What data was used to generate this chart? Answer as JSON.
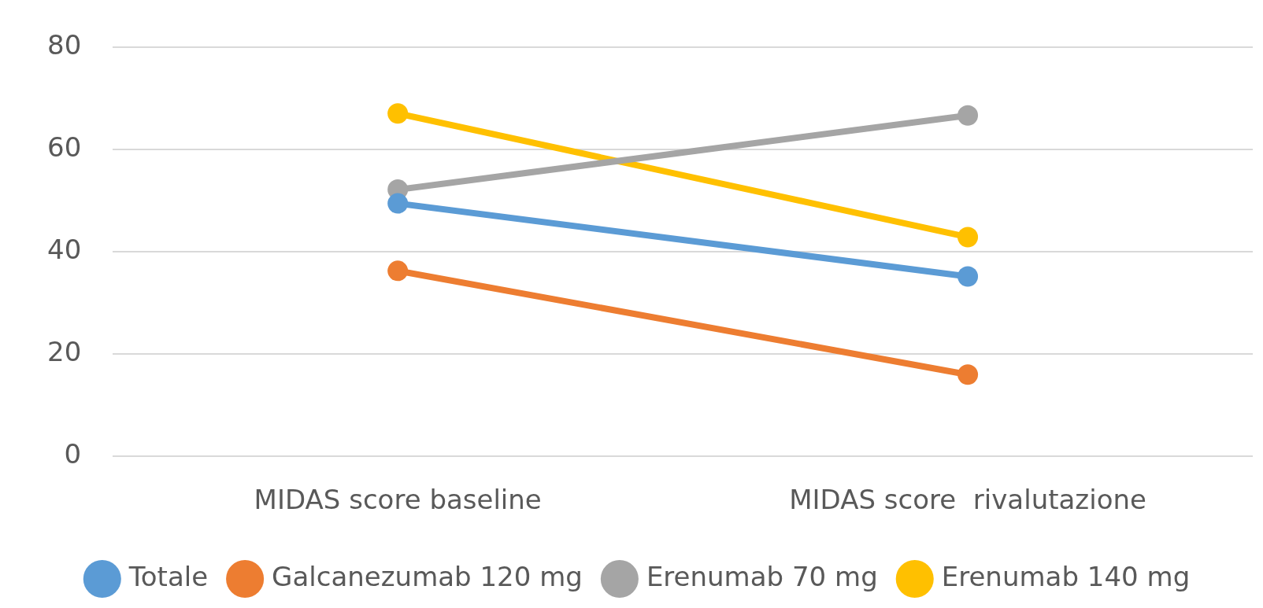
{
  "chart_data": {
    "type": "line",
    "categories": [
      "MIDAS score baseline",
      "MIDAS score  rivalutazione"
    ],
    "series": [
      {
        "name": "Totale",
        "color": "#5b9bd5",
        "values": [
          49.5,
          35.2
        ]
      },
      {
        "name": "Galcanezumab 120 mg",
        "color": "#ed7d31",
        "values": [
          36.3,
          16
        ]
      },
      {
        "name": "Erenumab 70 mg",
        "color": "#a5a5a5",
        "values": [
          52.2,
          66.7
        ]
      },
      {
        "name": "Erenumab 140 mg",
        "color": "#ffc000",
        "values": [
          67.1,
          42.9
        ]
      }
    ],
    "ylim": [
      0,
      80
    ],
    "yticks": [
      0,
      20,
      40,
      60,
      80
    ],
    "grid": "y",
    "legend": "bottom",
    "marker": "circle",
    "line_style": "solid"
  }
}
